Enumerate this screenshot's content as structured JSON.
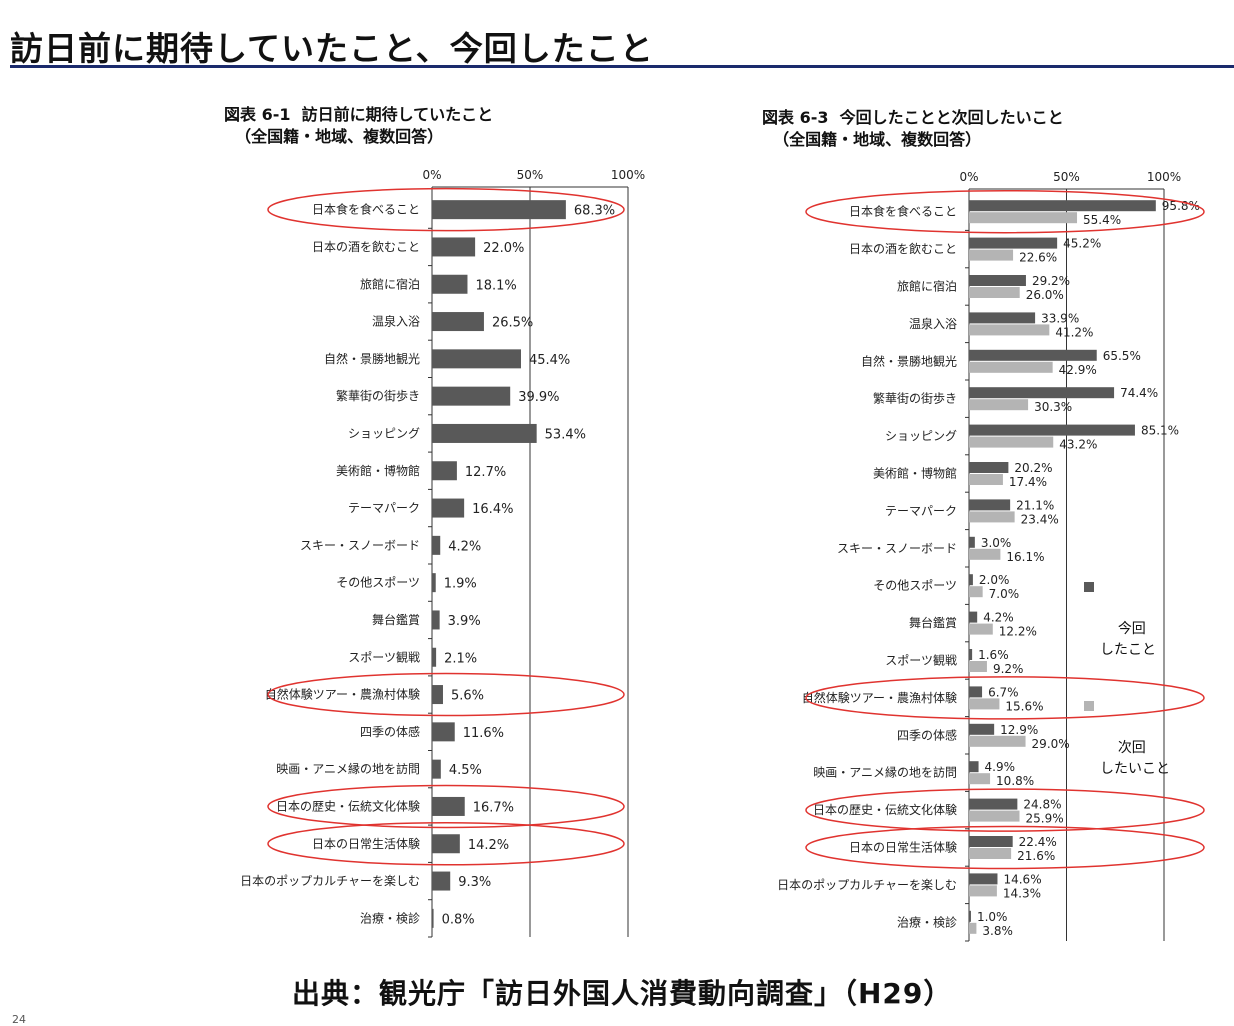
{
  "page_title": "訪日前に期待していたこと、今回したこと",
  "source": "出典：観光庁「訪日外国人消費動向調査」（H29）",
  "page_number": "24",
  "colors": {
    "dark": "#595959",
    "light": "#b4b4b4",
    "highlight": "#e0332f",
    "rule": "#1a2a6c"
  },
  "chart_data": [
    {
      "type": "bar",
      "orientation": "horizontal",
      "title": "図表 6-1  訪日前に期待していたこと\n  （全国籍・地域、複数回答）",
      "xlim": [
        0,
        100
      ],
      "ticks": [
        "0%",
        "50%",
        "100%"
      ],
      "categories": [
        "日本食を食べること",
        "日本の酒を飲むこと",
        "旅館に宿泊",
        "温泉入浴",
        "自然・景勝地観光",
        "繁華街の街歩き",
        "ショッピング",
        "美術館・博物館",
        "テーマパーク",
        "スキー・スノーボード",
        "その他スポーツ",
        "舞台鑑賞",
        "スポーツ観戦",
        "自然体験ツアー・農漁村体験",
        "四季の体感",
        "映画・アニメ縁の地を訪問",
        "日本の歴史・伝統文化体験",
        "日本の日常生活体験",
        "日本のポップカルチャーを楽しむ",
        "治療・検診"
      ],
      "series": [
        {
          "values": [
            68.3,
            22.0,
            18.1,
            26.5,
            45.4,
            39.9,
            53.4,
            12.7,
            16.4,
            4.2,
            1.9,
            3.9,
            2.1,
            5.6,
            11.6,
            4.5,
            16.7,
            14.2,
            9.3,
            0.8
          ],
          "labels": [
            "68.3%",
            "22.0%",
            "18.1%",
            "26.5%",
            "45.4%",
            "39.9%",
            "53.4%",
            "12.7%",
            "16.4%",
            "4.2%",
            "1.9%",
            "3.9%",
            "2.1%",
            "5.6%",
            "11.6%",
            "4.5%",
            "16.7%",
            "14.2%",
            "9.3%",
            "0.8%"
          ]
        }
      ],
      "highlighted": [
        0,
        13,
        16,
        17
      ]
    },
    {
      "type": "bar",
      "orientation": "horizontal",
      "title": "図表 6-3  今回したことと次回したいこと\n  （全国籍・地域、複数回答）",
      "xlim": [
        0,
        100
      ],
      "ticks": [
        "0%",
        "50%",
        "100%"
      ],
      "categories": [
        "日本食を食べること",
        "日本の酒を飲むこと",
        "旅館に宿泊",
        "温泉入浴",
        "自然・景勝地観光",
        "繁華街の街歩き",
        "ショッピング",
        "美術館・博物館",
        "テーマパーク",
        "スキー・スノーボード",
        "その他スポーツ",
        "舞台鑑賞",
        "スポーツ観戦",
        "自然体験ツアー・農漁村体験",
        "四季の体感",
        "映画・アニメ縁の地を訪問",
        "日本の歴史・伝統文化体験",
        "日本の日常生活体験",
        "日本のポップカルチャーを楽しむ",
        "治療・検診"
      ],
      "series": [
        {
          "name": "今回\nしたこと",
          "values": [
            95.8,
            45.2,
            29.2,
            33.9,
            65.5,
            74.4,
            85.1,
            20.2,
            21.1,
            3.0,
            2.0,
            4.2,
            1.6,
            6.7,
            12.9,
            4.9,
            24.8,
            22.4,
            14.6,
            1.0
          ],
          "labels": [
            "95.8%",
            "45.2%",
            "29.2%",
            "33.9%",
            "65.5%",
            "74.4%",
            "85.1%",
            "20.2%",
            "21.1%",
            "3.0%",
            "2.0%",
            "4.2%",
            "1.6%",
            "6.7%",
            "12.9%",
            "4.9%",
            "24.8%",
            "22.4%",
            "14.6%",
            "1.0%"
          ]
        },
        {
          "name": "次回\nしたいこと",
          "values": [
            55.4,
            22.6,
            26.0,
            41.2,
            42.9,
            30.3,
            43.2,
            17.4,
            23.4,
            16.1,
            7.0,
            12.2,
            9.2,
            15.6,
            29.0,
            10.8,
            25.9,
            21.6,
            14.3,
            3.8
          ],
          "labels": [
            "55.4%",
            "22.6%",
            "26.0%",
            "41.2%",
            "42.9%",
            "30.3%",
            "43.2%",
            "17.4%",
            "23.4%",
            "16.1%",
            "7.0%",
            "12.2%",
            "9.2%",
            "15.6%",
            "29.0%",
            "10.8%",
            "25.9%",
            "21.6%",
            "14.3%",
            "3.8%"
          ]
        }
      ],
      "legend_position": "right",
      "highlighted": [
        0,
        13,
        16,
        17
      ]
    }
  ]
}
